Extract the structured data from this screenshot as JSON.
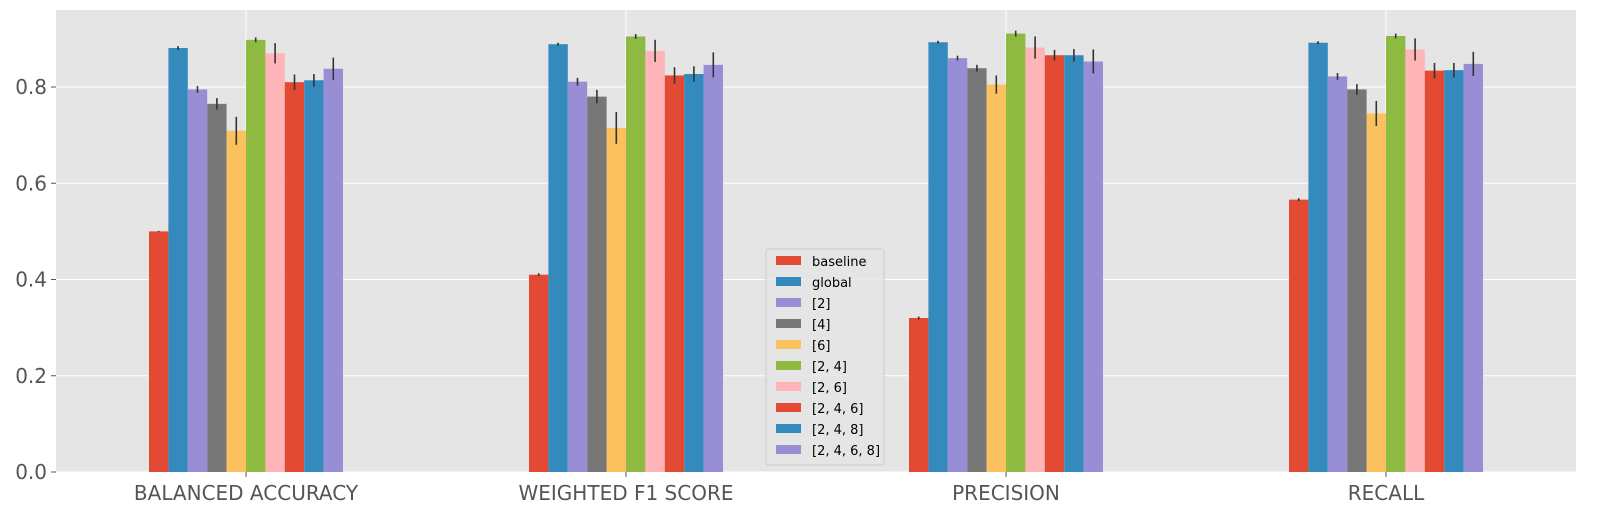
{
  "chart_data": {
    "type": "bar",
    "title": "",
    "xlabel": "",
    "ylabel": "",
    "ylim": [
      0,
      0.96
    ],
    "yticks": [
      0.0,
      0.2,
      0.4,
      0.6,
      0.8
    ],
    "ytick_labels": [
      "0.0",
      "0.2",
      "0.4",
      "0.6",
      "0.8"
    ],
    "grid": true,
    "legend_position": "lower-center",
    "categories": [
      "BALANCED ACCURACY",
      "WEIGHTED F1 SCORE",
      "PRECISION",
      "RECALL"
    ],
    "series": [
      {
        "name": "baseline",
        "color": "#E24A33",
        "values": [
          0.5,
          0.41,
          0.32,
          0.566
        ],
        "errors": [
          0.0,
          0.002,
          0.002,
          0.002
        ]
      },
      {
        "name": "global",
        "color": "#348ABD",
        "values": [
          0.881,
          0.889,
          0.893,
          0.892
        ],
        "errors": [
          0.003,
          0.002,
          0.002,
          0.002
        ]
      },
      {
        "name": "[2]",
        "color": "#988ED5",
        "values": [
          0.795,
          0.811,
          0.86,
          0.822
        ],
        "errors": [
          0.006,
          0.007,
          0.004,
          0.006
        ]
      },
      {
        "name": "[4]",
        "color": "#777777",
        "values": [
          0.765,
          0.78,
          0.839,
          0.795
        ],
        "errors": [
          0.011,
          0.013,
          0.006,
          0.01
        ]
      },
      {
        "name": "[6]",
        "color": "#FBC15E",
        "values": [
          0.709,
          0.715,
          0.805,
          0.745
        ],
        "errors": [
          0.028,
          0.032,
          0.018,
          0.025
        ]
      },
      {
        "name": "[2, 4]",
        "color": "#8EBA42",
        "values": [
          0.898,
          0.905,
          0.911,
          0.906
        ],
        "errors": [
          0.004,
          0.004,
          0.005,
          0.004
        ]
      },
      {
        "name": "[2, 6]",
        "color": "#FFB5B8",
        "values": [
          0.87,
          0.875,
          0.882,
          0.878
        ],
        "errors": [
          0.02,
          0.022,
          0.022,
          0.022
        ]
      },
      {
        "name": "[2, 4, 6]",
        "color": "#E24A33",
        "values": [
          0.81,
          0.824,
          0.866,
          0.834
        ],
        "errors": [
          0.015,
          0.016,
          0.01,
          0.015
        ]
      },
      {
        "name": "[2, 4, 8]",
        "color": "#348ABD",
        "values": [
          0.814,
          0.827,
          0.866,
          0.835
        ],
        "errors": [
          0.012,
          0.015,
          0.012,
          0.014
        ]
      },
      {
        "name": "[2, 4, 6, 8]",
        "color": "#988ED5",
        "values": [
          0.838,
          0.846,
          0.853,
          0.848
        ],
        "errors": [
          0.022,
          0.025,
          0.024,
          0.024
        ]
      }
    ]
  }
}
